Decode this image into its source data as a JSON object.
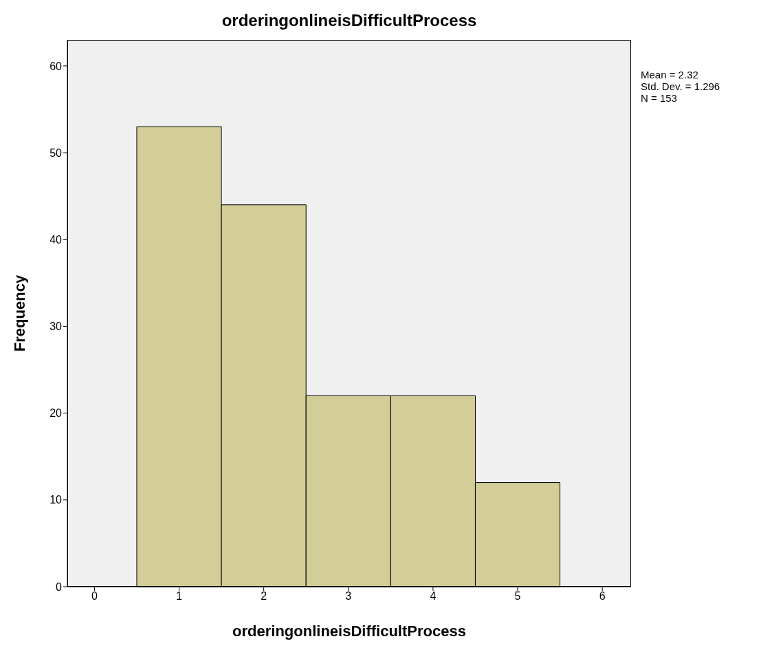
{
  "chart_data": {
    "type": "histogram",
    "title": "orderingonlineisDifficultProcess",
    "xlabel": "orderingonlineisDifficultProcess",
    "ylabel": "Frequency",
    "bins": [
      0.5,
      1.5,
      2.5,
      3.5,
      4.5,
      5.5
    ],
    "values": [
      53,
      44,
      22,
      22,
      12
    ],
    "color": "#d3ce97",
    "xlim": [
      -0.32,
      6.34
    ],
    "xticks": [
      0,
      1,
      2,
      3,
      4,
      5,
      6
    ],
    "ylim": [
      0,
      63
    ],
    "yticks": [
      0,
      10,
      20,
      30,
      40,
      50,
      60
    ],
    "annotations": [
      "Mean = 2.32",
      "Std. Dev. = 1.296",
      "N = 153"
    ]
  }
}
